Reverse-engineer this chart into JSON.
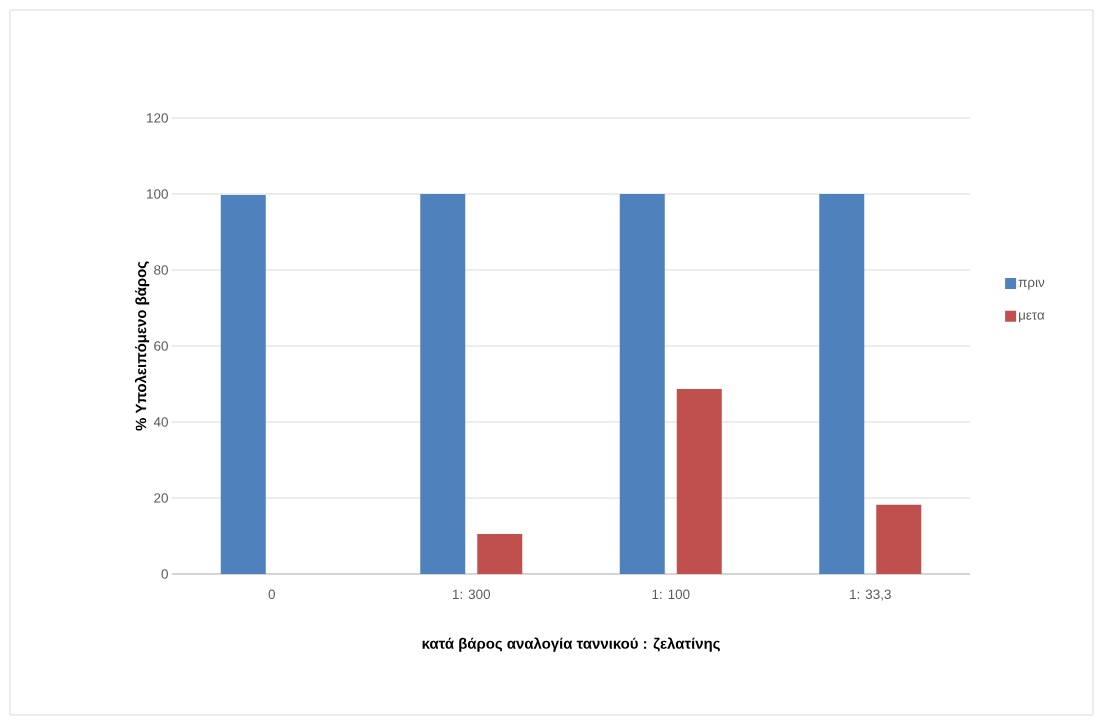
{
  "chart_data": {
    "type": "bar",
    "xlabel": "κατά βάρος αναλογία ταννικού : ζελατίνης",
    "ylabel": "% Υπολειπόμενο βάρος",
    "categories": [
      "0",
      "1: 300",
      "1: 100",
      "1: 33,3"
    ],
    "series": [
      {
        "name": "πριν",
        "color": "#4f81bd",
        "values": [
          99.7,
          100,
          100,
          100
        ]
      },
      {
        "name": "μετα",
        "color": "#c0504d",
        "values": [
          null,
          10.5,
          48.7,
          18.2
        ]
      }
    ],
    "ylim": [
      0,
      120
    ],
    "yticks": [
      0,
      20,
      40,
      60,
      80,
      100,
      120
    ],
    "grid": "y",
    "legend": "right"
  }
}
